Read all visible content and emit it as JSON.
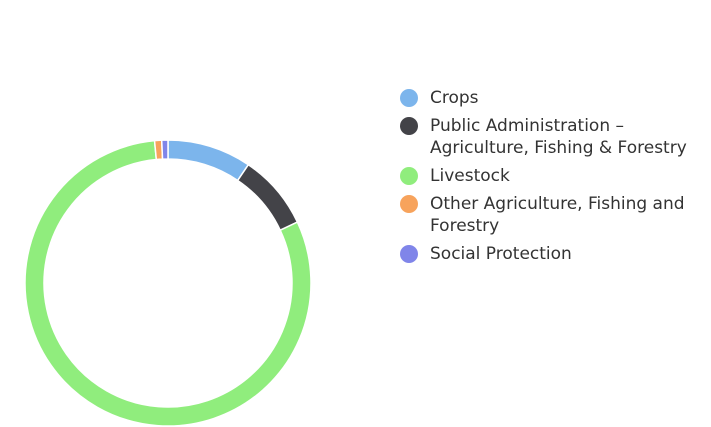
{
  "chart_data": {
    "type": "pie",
    "variant": "donut",
    "labels": [
      "Crops",
      "Public Administration – Agriculture, Fishing & Forestry",
      "Livestock",
      "Other Agriculture, Fishing and Forestry",
      "Social Protection"
    ],
    "values": [
      9.5,
      8.5,
      80.5,
      0.8,
      0.7
    ],
    "colors": [
      "#7cb5ec",
      "#434348",
      "#90ed7d",
      "#f7a35c",
      "#8085e9"
    ],
    "legend_position": "right"
  }
}
